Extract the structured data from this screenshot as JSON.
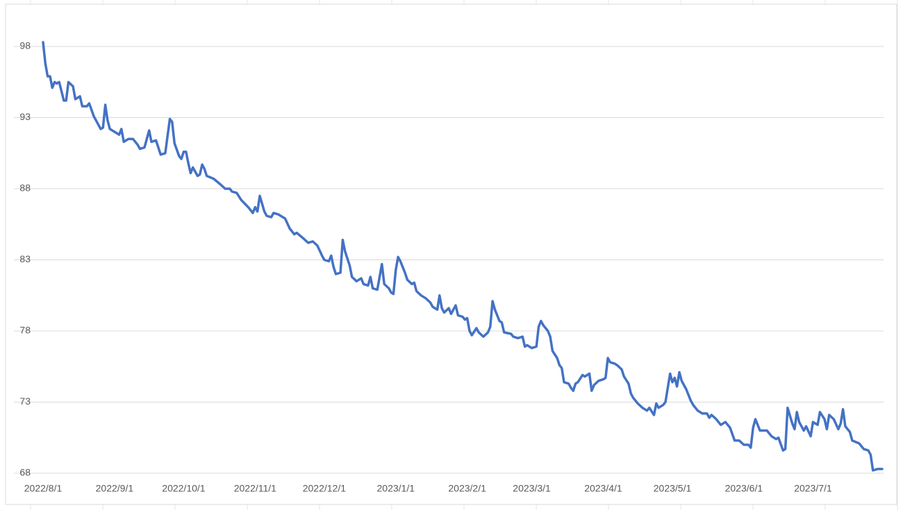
{
  "chart_data": {
    "type": "line",
    "color": "#4472c4",
    "grid": true,
    "x": [
      "2022/8/1",
      "2022/8/2",
      "2022/8/3",
      "2022/8/4",
      "2022/8/5",
      "2022/8/6",
      "2022/8/7",
      "2022/8/8",
      "2022/8/10",
      "2022/8/11",
      "2022/8/12",
      "2022/8/14",
      "2022/8/15",
      "2022/8/17",
      "2022/8/18",
      "2022/8/20",
      "2022/8/21",
      "2022/8/23",
      "2022/8/24",
      "2022/8/26",
      "2022/8/27",
      "2022/8/28",
      "2022/8/29",
      "2022/8/30",
      "2022/9/1",
      "2022/9/2",
      "2022/9/3",
      "2022/9/4",
      "2022/9/5",
      "2022/9/7",
      "2022/9/9",
      "2022/9/11",
      "2022/9/12",
      "2022/9/14",
      "2022/9/16",
      "2022/9/17",
      "2022/9/19",
      "2022/9/21",
      "2022/9/23",
      "2022/9/25",
      "2022/9/26",
      "2022/9/27",
      "2022/9/29",
      "2022/9/30",
      "2022/10/1",
      "2022/10/2",
      "2022/10/3",
      "2022/10/4",
      "2022/10/5",
      "2022/10/7",
      "2022/10/8",
      "2022/10/9",
      "2022/10/10",
      "2022/10/11",
      "2022/10/14",
      "2022/10/17",
      "2022/10/19",
      "2022/10/21",
      "2022/10/22",
      "2022/10/24",
      "2022/10/26",
      "2022/10/29",
      "2022/10/31",
      "2022/11/1",
      "2022/11/2",
      "2022/11/3",
      "2022/11/5",
      "2022/11/6",
      "2022/11/8",
      "2022/11/9",
      "2022/11/11",
      "2022/11/14",
      "2022/11/16",
      "2022/11/18",
      "2022/11/19",
      "2022/11/22",
      "2022/11/24",
      "2022/11/26",
      "2022/11/28",
      "2022/11/30",
      "2022/12/1",
      "2022/12/3",
      "2022/12/4",
      "2022/12/5",
      "2022/12/6",
      "2022/12/8",
      "2022/12/9",
      "2022/12/10",
      "2022/12/12",
      "2022/12/13",
      "2022/12/15",
      "2022/12/17",
      "2022/12/18",
      "2022/12/20",
      "2022/12/21",
      "2022/12/22",
      "2022/12/24",
      "2022/12/26",
      "2022/12/27",
      "2022/12/29",
      "2022/12/30",
      "2022/12/31",
      "2023/1/1",
      "2023/1/2",
      "2023/1/3",
      "2023/1/5",
      "2023/1/6",
      "2023/1/8",
      "2023/1/9",
      "2023/1/10",
      "2023/1/12",
      "2023/1/14",
      "2023/1/16",
      "2023/1/17",
      "2023/1/19",
      "2023/1/20",
      "2023/1/21",
      "2023/1/22",
      "2023/1/24",
      "2023/1/25",
      "2023/1/27",
      "2023/1/28",
      "2023/1/30",
      "2023/1/31",
      "2023/2/1",
      "2023/2/2",
      "2023/2/3",
      "2023/2/5",
      "2023/2/6",
      "2023/2/8",
      "2023/2/10",
      "2023/2/11",
      "2023/2/12",
      "2023/2/13",
      "2023/2/15",
      "2023/2/16",
      "2023/2/17",
      "2023/2/20",
      "2023/2/21",
      "2023/2/23",
      "2023/2/25",
      "2023/2/26",
      "2023/2/27",
      "2023/3/1",
      "2023/3/3",
      "2023/3/4",
      "2023/3/5",
      "2023/3/6",
      "2023/3/8",
      "2023/3/9",
      "2023/3/10",
      "2023/3/12",
      "2023/3/13",
      "2023/3/14",
      "2023/3/15",
      "2023/3/17",
      "2023/3/18",
      "2023/3/19",
      "2023/3/20",
      "2023/3/21",
      "2023/3/23",
      "2023/3/24",
      "2023/3/26",
      "2023/3/27",
      "2023/3/28",
      "2023/3/30",
      "2023/4/1",
      "2023/4/2",
      "2023/4/3",
      "2023/4/4",
      "2023/4/6",
      "2023/4/7",
      "2023/4/9",
      "2023/4/10",
      "2023/4/12",
      "2023/4/13",
      "2023/4/14",
      "2023/4/16",
      "2023/4/18",
      "2023/4/20",
      "2023/4/21",
      "2023/4/23",
      "2023/4/24",
      "2023/4/25",
      "2023/4/27",
      "2023/4/28",
      "2023/4/30",
      "2023/5/1",
      "2023/5/2",
      "2023/5/3",
      "2023/5/4",
      "2023/5/5",
      "2023/5/7",
      "2023/5/9",
      "2023/5/10",
      "2023/5/12",
      "2023/5/14",
      "2023/5/16",
      "2023/5/17",
      "2023/5/18",
      "2023/5/20",
      "2023/5/22",
      "2023/5/24",
      "2023/5/26",
      "2023/5/28",
      "2023/5/30",
      "2023/6/1",
      "2023/6/3",
      "2023/6/4",
      "2023/6/5",
      "2023/6/6",
      "2023/6/8",
      "2023/6/11",
      "2023/6/13",
      "2023/6/15",
      "2023/6/16",
      "2023/6/18",
      "2023/6/19",
      "2023/6/20",
      "2023/6/22",
      "2023/6/23",
      "2023/6/24",
      "2023/6/25",
      "2023/6/27",
      "2023/6/28",
      "2023/6/30",
      "2023/7/1",
      "2023/7/3",
      "2023/7/4",
      "2023/7/6",
      "2023/7/7",
      "2023/7/8",
      "2023/7/10",
      "2023/7/12",
      "2023/7/13",
      "2023/7/14",
      "2023/7/15",
      "2023/7/17",
      "2023/7/18",
      "2023/7/21",
      "2023/7/23",
      "2023/7/25",
      "2023/7/26",
      "2023/7/27",
      "2023/7/29",
      "2023/7/31"
    ],
    "values": [
      98.3,
      96.8,
      95.9,
      95.9,
      95.1,
      95.5,
      95.4,
      95.5,
      94.2,
      94.2,
      95.5,
      95.2,
      94.3,
      94.5,
      93.8,
      93.8,
      94.0,
      93.1,
      92.8,
      92.2,
      92.3,
      93.9,
      92.8,
      92.2,
      92.0,
      91.9,
      91.8,
      92.2,
      91.3,
      91.5,
      91.5,
      91.1,
      90.8,
      90.9,
      92.1,
      91.3,
      91.4,
      90.4,
      90.5,
      92.9,
      92.7,
      91.2,
      90.3,
      90.1,
      90.6,
      90.6,
      89.8,
      89.1,
      89.5,
      88.9,
      89.0,
      89.7,
      89.4,
      88.9,
      88.7,
      88.3,
      88.0,
      88.0,
      87.8,
      87.7,
      87.2,
      86.7,
      86.3,
      86.7,
      86.4,
      87.5,
      86.4,
      86.1,
      86.0,
      86.3,
      86.2,
      85.9,
      85.2,
      84.8,
      84.9,
      84.5,
      84.2,
      84.3,
      84.0,
      83.3,
      83.0,
      82.9,
      83.3,
      82.5,
      82.0,
      82.1,
      84.4,
      83.6,
      82.6,
      81.8,
      81.5,
      81.7,
      81.3,
      81.2,
      81.8,
      81.0,
      80.9,
      82.7,
      81.3,
      81.0,
      80.7,
      80.6,
      82.3,
      83.2,
      82.9,
      82.1,
      81.6,
      81.3,
      81.4,
      80.8,
      80.5,
      80.3,
      80.0,
      79.7,
      79.5,
      80.5,
      79.6,
      79.3,
      79.6,
      79.2,
      79.8,
      79.1,
      79.0,
      78.8,
      78.9,
      78.0,
      77.7,
      78.2,
      77.9,
      77.6,
      77.9,
      78.3,
      80.1,
      79.5,
      78.7,
      78.6,
      77.9,
      77.8,
      77.6,
      77.5,
      77.6,
      76.9,
      77.0,
      76.8,
      76.9,
      78.3,
      78.7,
      78.4,
      78.0,
      77.6,
      76.6,
      76.1,
      75.6,
      75.4,
      74.4,
      74.3,
      74.0,
      73.8,
      74.3,
      74.4,
      74.9,
      74.8,
      75.0,
      73.8,
      74.2,
      74.5,
      74.6,
      74.7,
      76.1,
      75.8,
      75.7,
      75.6,
      75.3,
      74.8,
      74.3,
      73.6,
      73.3,
      72.9,
      72.6,
      72.4,
      72.6,
      72.1,
      72.9,
      72.6,
      72.8,
      73.0,
      75.0,
      74.4,
      74.7,
      74.1,
      75.1,
      74.5,
      73.9,
      73.1,
      72.8,
      72.4,
      72.2,
      72.2,
      71.9,
      72.1,
      71.8,
      71.4,
      71.6,
      71.2,
      70.3,
      70.3,
      70.0,
      70.0,
      69.8,
      71.2,
      71.8,
      71.0,
      71.0,
      70.6,
      70.4,
      70.5,
      69.6,
      69.7,
      72.6,
      71.5,
      71.1,
      72.3,
      71.6,
      71.0,
      71.3,
      70.6,
      71.6,
      71.4,
      72.3,
      71.8,
      71.1,
      72.1,
      71.8,
      71.1,
      71.5,
      72.5,
      71.3,
      70.9,
      70.3,
      70.1,
      69.7,
      69.6,
      69.3,
      68.2,
      68.3,
      68.3
    ],
    "xlim": [
      "2022/8/1",
      "2023/7/31"
    ],
    "xticks": [
      "2022/8/1",
      "2022/9/1",
      "2022/10/1",
      "2022/11/1",
      "2022/12/1",
      "2023/1/1",
      "2023/2/1",
      "2023/3/1",
      "2023/4/1",
      "2023/5/1",
      "2023/6/1",
      "2023/7/1"
    ],
    "ylim": [
      68,
      98
    ],
    "yticks": [
      68,
      73,
      78,
      83,
      88,
      93,
      98
    ]
  }
}
